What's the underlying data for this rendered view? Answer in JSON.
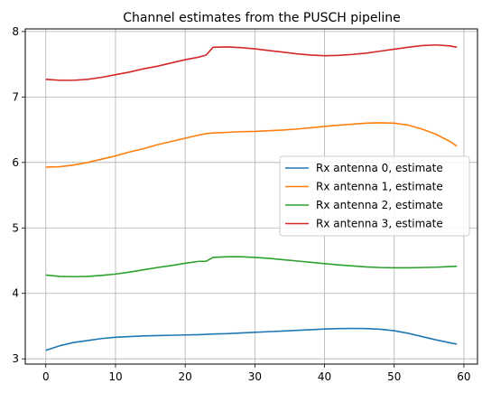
{
  "chart_data": {
    "type": "line",
    "title": "Channel estimates from the PUSCH pipeline",
    "xlabel": "",
    "ylabel": "",
    "xlim": [
      -2.95,
      61.95
    ],
    "ylim": [
      2.92,
      8.04
    ],
    "xticks": [
      0,
      10,
      20,
      30,
      40,
      50,
      60
    ],
    "yticks": [
      3,
      4,
      5,
      6,
      7,
      8
    ],
    "grid": true,
    "legend": "center-right",
    "x": [
      0,
      2,
      4,
      6,
      8,
      10,
      12,
      14,
      16,
      18,
      20,
      22,
      23,
      24,
      26,
      28,
      30,
      32,
      34,
      36,
      38,
      40,
      42,
      44,
      46,
      48,
      50,
      52,
      54,
      56,
      58,
      59
    ],
    "series": [
      {
        "name": "Rx antenna 0, estimate",
        "color": "#1f77b4",
        "values": [
          3.13,
          3.2,
          3.25,
          3.28,
          3.31,
          3.33,
          3.34,
          3.35,
          3.355,
          3.36,
          3.365,
          3.37,
          3.375,
          3.38,
          3.385,
          3.395,
          3.405,
          3.415,
          3.425,
          3.435,
          3.445,
          3.455,
          3.462,
          3.465,
          3.463,
          3.452,
          3.43,
          3.39,
          3.34,
          3.29,
          3.245,
          3.225
        ]
      },
      {
        "name": "Rx antenna 1, estimate",
        "color": "#ff7f0e",
        "values": [
          5.93,
          5.935,
          5.96,
          6.0,
          6.05,
          6.1,
          6.16,
          6.21,
          6.27,
          6.32,
          6.37,
          6.42,
          6.44,
          6.45,
          6.46,
          6.47,
          6.475,
          6.485,
          6.495,
          6.51,
          6.53,
          6.55,
          6.57,
          6.585,
          6.6,
          6.605,
          6.6,
          6.57,
          6.51,
          6.43,
          6.32,
          6.25
        ]
      },
      {
        "name": "Rx antenna 2, estimate",
        "color": "#2ca02c",
        "values": [
          4.28,
          4.26,
          4.255,
          4.26,
          4.275,
          4.295,
          4.325,
          4.36,
          4.395,
          4.425,
          4.46,
          4.49,
          4.49,
          4.55,
          4.56,
          4.56,
          4.55,
          4.535,
          4.515,
          4.495,
          4.475,
          4.455,
          4.435,
          4.42,
          4.405,
          4.395,
          4.39,
          4.39,
          4.395,
          4.4,
          4.41,
          4.415
        ]
      },
      {
        "name": "Rx antenna 3, estimate",
        "color": "#d62728",
        "values": [
          7.27,
          7.255,
          7.255,
          7.27,
          7.3,
          7.34,
          7.38,
          7.43,
          7.47,
          7.52,
          7.57,
          7.61,
          7.64,
          7.76,
          7.765,
          7.755,
          7.735,
          7.71,
          7.685,
          7.66,
          7.64,
          7.63,
          7.635,
          7.65,
          7.67,
          7.7,
          7.73,
          7.76,
          7.785,
          7.795,
          7.78,
          7.76
        ]
      }
    ]
  },
  "colors": {
    "frame": "#000000",
    "grid": "#b0b0b0",
    "legend_border": "#cccccc"
  }
}
